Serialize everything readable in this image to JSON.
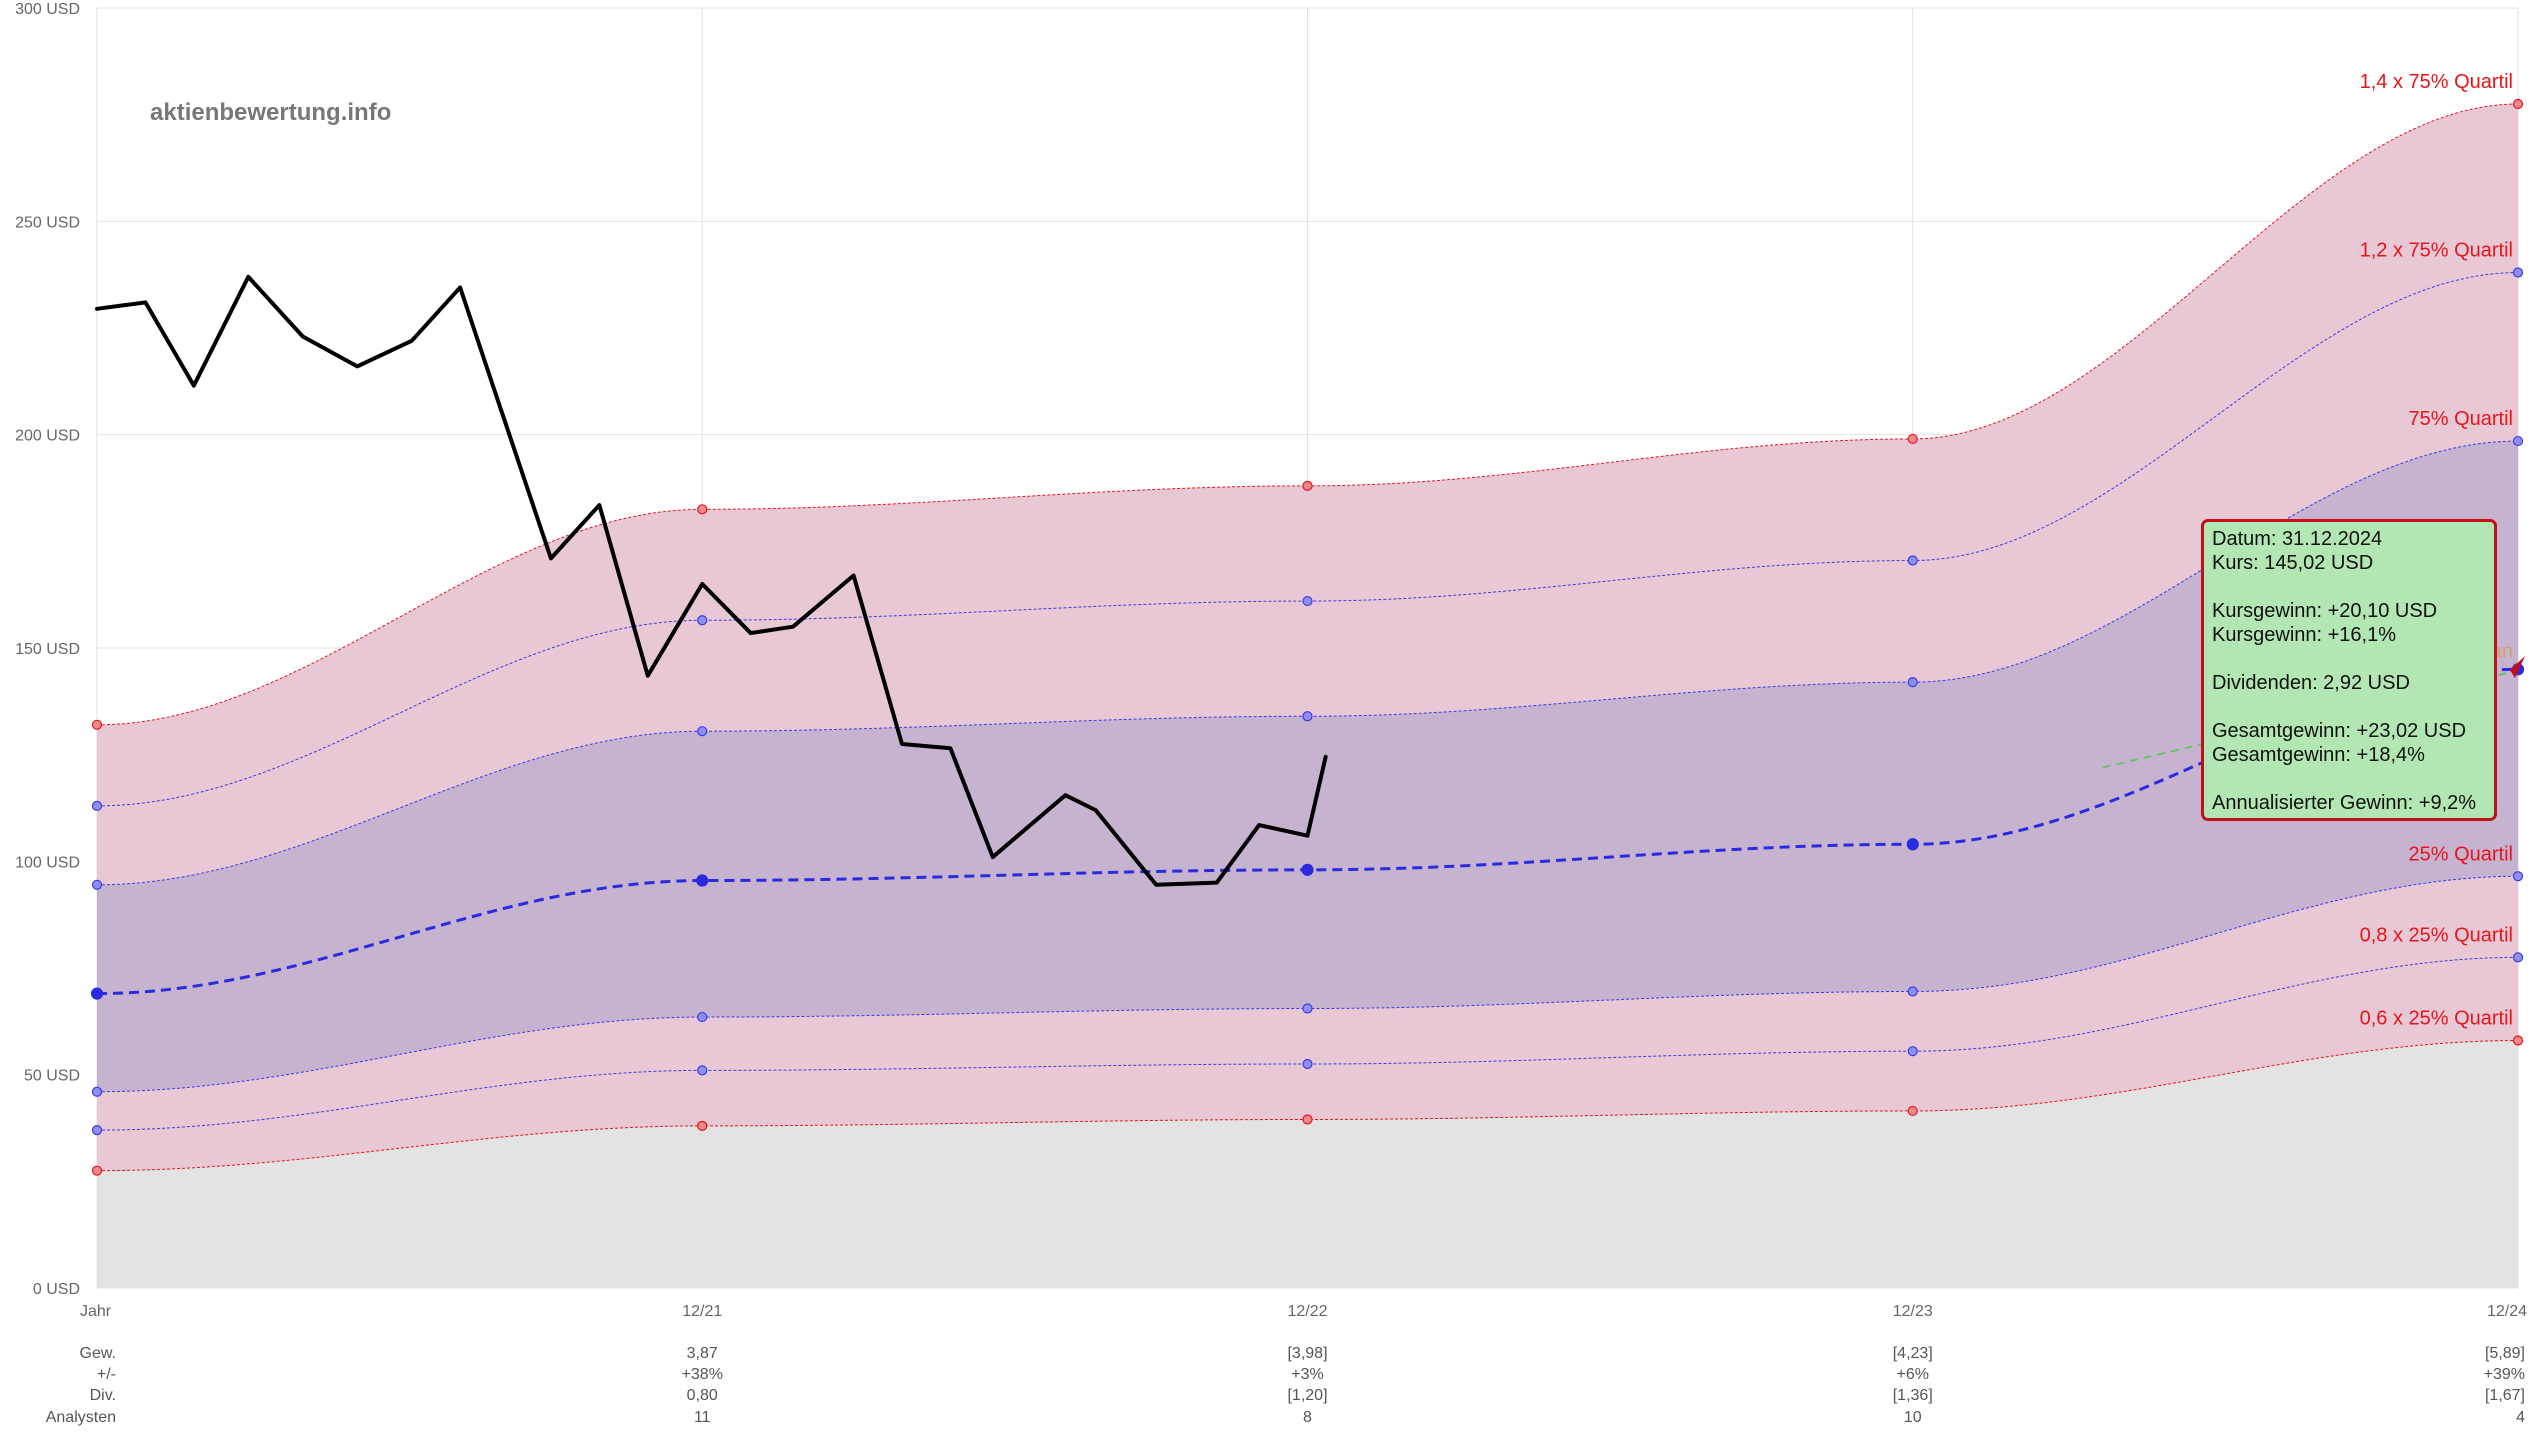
{
  "brand": "aktienbewertung.info",
  "chart_data": {
    "type": "area",
    "y_unit": "USD",
    "ylim": [
      0,
      300
    ],
    "y_ticks": [
      "0 USD",
      "50 USD",
      "100 USD",
      "150 USD",
      "200 USD",
      "250 USD",
      "300 USD"
    ],
    "x_tick_labels": [
      "Jahr",
      "12/21",
      "12/22",
      "12/23",
      "12/24"
    ],
    "grid": true,
    "bands": [
      {
        "name": "1,4 x 75% Quartil",
        "values": [
          132,
          182.5,
          188,
          199,
          277.5
        ],
        "color": "#e8141b"
      },
      {
        "name": "1,2 x 75% Quartil",
        "values": [
          113,
          156.5,
          161,
          170.5,
          238
        ],
        "color": "#3a3ae8"
      },
      {
        "name": "75% Quartil",
        "values": [
          94.5,
          130.5,
          134,
          142,
          198.5
        ],
        "color": "#3a3ae8"
      },
      {
        "name": "Median",
        "values": [
          69,
          95.5,
          98,
          104,
          145
        ],
        "color": "#2a2ae0"
      },
      {
        "name": "25% Quartil",
        "values": [
          46,
          63.5,
          65.5,
          69.5,
          96.5
        ],
        "color": "#3a3ae8"
      },
      {
        "name": "0,8 x 25% Quartil",
        "values": [
          37,
          51,
          52.5,
          55.5,
          77.5
        ],
        "color": "#3a3ae8"
      },
      {
        "name": "0,6 x 25% Quartil",
        "values": [
          27.5,
          38,
          39.5,
          41.5,
          58
        ],
        "color": "#e8141b"
      }
    ],
    "price_series": {
      "x": [
        0,
        0.08,
        0.16,
        0.25,
        0.34,
        0.43,
        0.52,
        0.6,
        0.66,
        0.75,
        0.83,
        0.91,
        1.0,
        1.08,
        1.15,
        1.25,
        1.33,
        1.41,
        1.48,
        1.6,
        1.65,
        1.75,
        1.85,
        1.92,
        2.0,
        2.03
      ],
      "y": [
        229.5,
        231,
        211.5,
        237,
        223,
        216,
        222,
        234.5,
        209,
        171,
        183.5,
        143.5,
        165,
        153.5,
        155,
        167,
        127.5,
        126.5,
        101,
        115.5,
        112,
        94.5,
        95,
        108.5,
        106,
        124.5
      ]
    },
    "table": {
      "row_labels": [
        "Gew.",
        "+/-",
        "Div.",
        "Analysten"
      ],
      "columns": [
        {
          "values": [
            "3,87",
            "+38%",
            "0,80",
            "11"
          ]
        },
        {
          "values": [
            "[3,98]",
            "+3%",
            "[1,20]",
            "8"
          ]
        },
        {
          "values": [
            "[4,23]",
            "+6%",
            "[1,36]",
            "10"
          ]
        },
        {
          "values": [
            "[5,89]",
            "+39%",
            "[1,67]",
            "4"
          ]
        }
      ]
    }
  },
  "tooltip": {
    "lines": [
      "Datum: 31.12.2024",
      "Kurs: 145,02 USD",
      "",
      "Kursgewinn: +20,10 USD",
      "Kursgewinn: +16,1%",
      "",
      "Dividenden: 2,92 USD",
      "",
      "Gesamtgewinn: +23,02 USD",
      "Gesamtgewinn: +18,4%",
      "",
      "Annualisierter Gewinn: +9,2%"
    ]
  }
}
